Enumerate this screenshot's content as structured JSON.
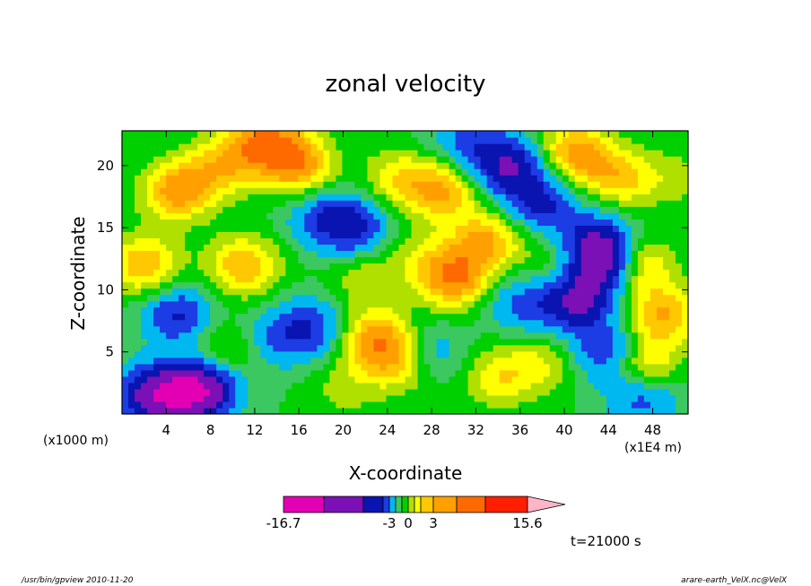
{
  "chart_data": {
    "type": "heatmap",
    "title": "zonal velocity",
    "xlabel": "X-coordinate",
    "ylabel": "Z-coordinate",
    "x_unit_left": "(x1000 m)",
    "x_unit_right": "(x1E4 m)",
    "x_ticks": [
      4,
      8,
      12,
      16,
      20,
      24,
      28,
      32,
      36,
      40,
      44,
      48
    ],
    "y_ticks": [
      5,
      10,
      15,
      20
    ],
    "xlim": [
      0,
      51.2
    ],
    "ylim": [
      0,
      22.8
    ],
    "colorbar": {
      "tick_labels": [
        "-16.7",
        "-3",
        "0",
        "3",
        "15.6"
      ],
      "colors": [
        "#e300b4",
        "#7a10b5",
        "#0a14b0",
        "#1c3ce4",
        "#00b8f0",
        "#3cc860",
        "#00d000",
        "#b0e000",
        "#ffff00",
        "#ffc800",
        "#ffa000",
        "#ff6a00",
        "#ff1e00",
        "#ff7a7a"
      ],
      "extend_color": "#ffb4c8"
    },
    "blobs": [
      {
        "x": 2,
        "z": 12,
        "v": 6
      },
      {
        "x": 5,
        "z": 18,
        "v": 7
      },
      {
        "x": 9,
        "z": 20,
        "v": 5
      },
      {
        "x": 11,
        "z": 12,
        "v": 6
      },
      {
        "x": 7,
        "z": 2,
        "v": -12
      },
      {
        "x": 3,
        "z": 1.5,
        "v": -10
      },
      {
        "x": 5,
        "z": 8,
        "v": -6
      },
      {
        "x": 13,
        "z": 22,
        "v": 8
      },
      {
        "x": 16,
        "z": 20,
        "v": 7
      },
      {
        "x": 18,
        "z": 16,
        "v": -4
      },
      {
        "x": 21,
        "z": 15,
        "v": -6
      },
      {
        "x": 17,
        "z": 7,
        "v": -5
      },
      {
        "x": 23,
        "z": 6,
        "v": 7
      },
      {
        "x": 22,
        "z": 11,
        "v": 3
      },
      {
        "x": 25,
        "z": 4,
        "v": 4
      },
      {
        "x": 20,
        "z": 2,
        "v": 2
      },
      {
        "x": 25,
        "z": 19,
        "v": 4
      },
      {
        "x": 27,
        "z": 13,
        "v": 2
      },
      {
        "x": 30,
        "z": 11,
        "v": 8
      },
      {
        "x": 33,
        "z": 14,
        "v": 6
      },
      {
        "x": 29,
        "z": 18,
        "v": 6
      },
      {
        "x": 31,
        "z": 22,
        "v": -4
      },
      {
        "x": 35,
        "z": 20,
        "v": -8
      },
      {
        "x": 38,
        "z": 17,
        "v": -6
      },
      {
        "x": 36,
        "z": 9,
        "v": -4
      },
      {
        "x": 34,
        "z": 3,
        "v": 4
      },
      {
        "x": 38,
        "z": 4,
        "v": 3
      },
      {
        "x": 41,
        "z": 9,
        "v": -8
      },
      {
        "x": 43,
        "z": 14,
        "v": -6
      },
      {
        "x": 41,
        "z": 21,
        "v": 7
      },
      {
        "x": 45,
        "z": 19,
        "v": 5
      },
      {
        "x": 44,
        "z": 12,
        "v": -12
      },
      {
        "x": 46,
        "z": 12,
        "v": 9
      },
      {
        "x": 47,
        "z": 4,
        "v": 6
      },
      {
        "x": 49,
        "z": 8,
        "v": 6
      },
      {
        "x": 50,
        "z": 19,
        "v": 2
      },
      {
        "x": 44,
        "z": 5,
        "v": -6
      },
      {
        "x": 14,
        "z": 6,
        "v": -3
      },
      {
        "x": 9,
        "z": 5,
        "v": 3
      },
      {
        "x": 28,
        "z": 5,
        "v": -3
      },
      {
        "x": 39,
        "z": 12,
        "v": 2
      },
      {
        "x": 47,
        "z": 1.5,
        "v": -5
      }
    ]
  },
  "time_label": "t=21000 s",
  "footer_left": "/usr/bin/gpview  2010-11-20",
  "footer_right": "arare-earth_VelX.nc@VelX"
}
